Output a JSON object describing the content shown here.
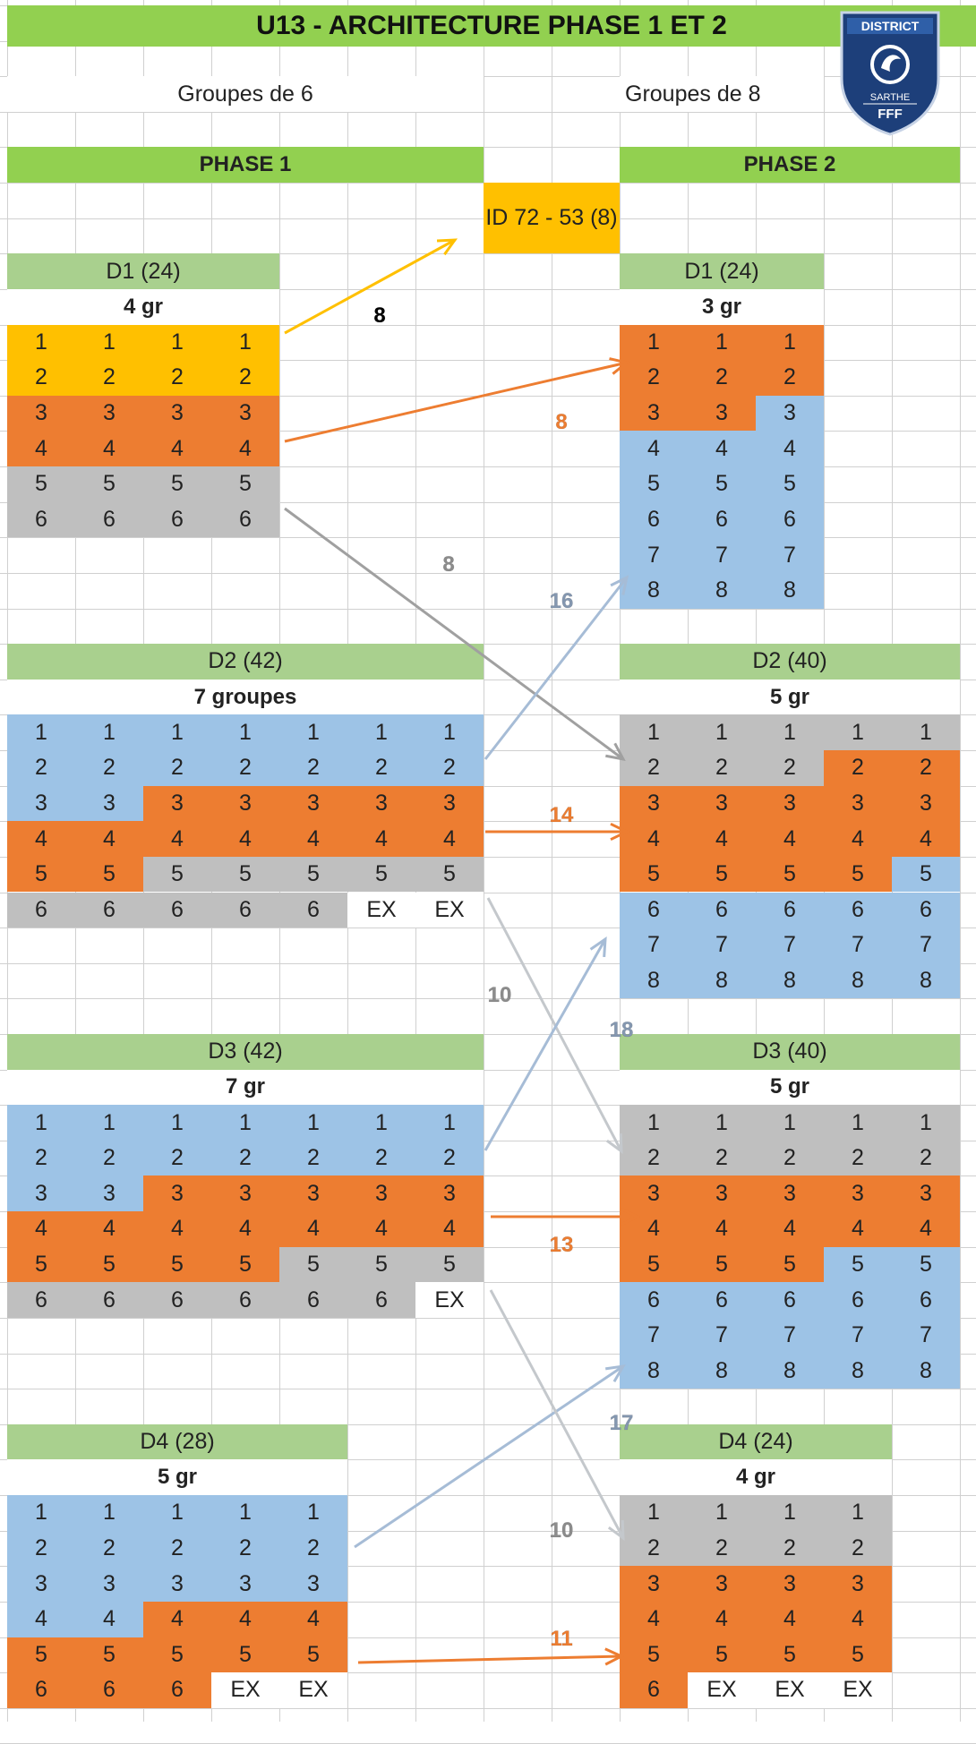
{
  "title": "U13 - ARCHITECTURE PHASE 1 ET 2",
  "logo": {
    "top_text": "DISTRICT",
    "middle_text": "SARTHE",
    "bottom_text": "FFF"
  },
  "colors": {
    "green": "#92d050",
    "light_green": "#a9d08e",
    "yellow": "#ffc000",
    "orange": "#ed7d31",
    "gray": "#bfbfbf",
    "blue": "#9dc3e6",
    "grid": "#d0d0d0",
    "logo_blue": "#1d3f7a"
  },
  "headers": {
    "groupes6": "Groupes de 6",
    "groupes8": "Groupes de 8",
    "phase1": "PHASE 1",
    "phase2": "PHASE 2",
    "id_box": "ID 72 - 53 (8)"
  },
  "phase1": [
    {
      "division": "D1  (24)",
      "groups": "4 gr",
      "rows": [
        {
          "v": [
            "1",
            "1",
            "1",
            "1"
          ],
          "c": "yellow"
        },
        {
          "v": [
            "2",
            "2",
            "2",
            "2"
          ],
          "c": "yellow"
        },
        {
          "v": [
            "3",
            "3",
            "3",
            "3"
          ],
          "c": "orange"
        },
        {
          "v": [
            "4",
            "4",
            "4",
            "4"
          ],
          "c": "orange"
        },
        {
          "v": [
            "5",
            "5",
            "5",
            "5"
          ],
          "c": "gray"
        },
        {
          "v": [
            "6",
            "6",
            "6",
            "6"
          ],
          "c": "gray"
        }
      ]
    },
    {
      "division": "D2  (42)",
      "groups": "7 groupes",
      "rows": [
        {
          "v": [
            "1",
            "1",
            "1",
            "1",
            "1",
            "1",
            "1"
          ],
          "c": "blue"
        },
        {
          "v": [
            "2",
            "2",
            "2",
            "2",
            "2",
            "2",
            "2"
          ],
          "c": "blue"
        },
        {
          "v": [
            "3",
            "3",
            "3",
            "3",
            "3",
            "3",
            "3"
          ],
          "c": [
            "blue",
            "blue",
            "orange",
            "orange",
            "orange",
            "orange",
            "orange"
          ]
        },
        {
          "v": [
            "4",
            "4",
            "4",
            "4",
            "4",
            "4",
            "4"
          ],
          "c": "orange"
        },
        {
          "v": [
            "5",
            "5",
            "5",
            "5",
            "5",
            "5",
            "5"
          ],
          "c": [
            "orange",
            "orange",
            "gray",
            "gray",
            "gray",
            "gray",
            "gray"
          ]
        },
        {
          "v": [
            "6",
            "6",
            "6",
            "6",
            "6",
            "EX",
            "EX"
          ],
          "c": [
            "gray",
            "gray",
            "gray",
            "gray",
            "gray",
            "white",
            "white"
          ]
        }
      ]
    },
    {
      "division": "D3  (42)",
      "groups": "7 gr",
      "rows": [
        {
          "v": [
            "1",
            "1",
            "1",
            "1",
            "1",
            "1",
            "1"
          ],
          "c": "blue"
        },
        {
          "v": [
            "2",
            "2",
            "2",
            "2",
            "2",
            "2",
            "2"
          ],
          "c": "blue"
        },
        {
          "v": [
            "3",
            "3",
            "3",
            "3",
            "3",
            "3",
            "3"
          ],
          "c": [
            "blue",
            "blue",
            "orange",
            "orange",
            "orange",
            "orange",
            "orange"
          ]
        },
        {
          "v": [
            "4",
            "4",
            "4",
            "4",
            "4",
            "4",
            "4"
          ],
          "c": "orange"
        },
        {
          "v": [
            "5",
            "5",
            "5",
            "5",
            "5",
            "5",
            "5"
          ],
          "c": [
            "orange",
            "orange",
            "orange",
            "orange",
            "gray",
            "gray",
            "gray"
          ]
        },
        {
          "v": [
            "6",
            "6",
            "6",
            "6",
            "6",
            "6",
            "EX"
          ],
          "c": [
            "gray",
            "gray",
            "gray",
            "gray",
            "gray",
            "gray",
            "white"
          ]
        }
      ]
    },
    {
      "division": "D4  (28)",
      "groups": "5 gr",
      "rows": [
        {
          "v": [
            "1",
            "1",
            "1",
            "1",
            "1"
          ],
          "c": "blue"
        },
        {
          "v": [
            "2",
            "2",
            "2",
            "2",
            "2"
          ],
          "c": "blue"
        },
        {
          "v": [
            "3",
            "3",
            "3",
            "3",
            "3"
          ],
          "c": "blue"
        },
        {
          "v": [
            "4",
            "4",
            "4",
            "4",
            "4"
          ],
          "c": [
            "blue",
            "blue",
            "orange",
            "orange",
            "orange"
          ]
        },
        {
          "v": [
            "5",
            "5",
            "5",
            "5",
            "5"
          ],
          "c": "orange"
        },
        {
          "v": [
            "6",
            "6",
            "6",
            "EX",
            "EX"
          ],
          "c": [
            "orange",
            "orange",
            "orange",
            "white",
            "white"
          ]
        }
      ]
    }
  ],
  "phase2": [
    {
      "division": "D1  (24)",
      "groups": "3 gr",
      "rows": [
        {
          "v": [
            "1",
            "1",
            "1"
          ],
          "c": "orange"
        },
        {
          "v": [
            "2",
            "2",
            "2"
          ],
          "c": "orange"
        },
        {
          "v": [
            "3",
            "3",
            "3"
          ],
          "c": [
            "orange",
            "orange",
            "blue"
          ]
        },
        {
          "v": [
            "4",
            "4",
            "4"
          ],
          "c": "blue"
        },
        {
          "v": [
            "5",
            "5",
            "5"
          ],
          "c": "blue"
        },
        {
          "v": [
            "6",
            "6",
            "6"
          ],
          "c": "blue"
        },
        {
          "v": [
            "7",
            "7",
            "7"
          ],
          "c": "blue"
        },
        {
          "v": [
            "8",
            "8",
            "8"
          ],
          "c": "blue"
        }
      ]
    },
    {
      "division": "D2  (40)",
      "groups": "5 gr",
      "rows": [
        {
          "v": [
            "1",
            "1",
            "1",
            "1",
            "1"
          ],
          "c": "gray"
        },
        {
          "v": [
            "2",
            "2",
            "2",
            "2",
            "2"
          ],
          "c": [
            "gray",
            "gray",
            "gray",
            "orange",
            "orange"
          ]
        },
        {
          "v": [
            "3",
            "3",
            "3",
            "3",
            "3"
          ],
          "c": "orange"
        },
        {
          "v": [
            "4",
            "4",
            "4",
            "4",
            "4"
          ],
          "c": "orange"
        },
        {
          "v": [
            "5",
            "5",
            "5",
            "5",
            "5"
          ],
          "c": [
            "orange",
            "orange",
            "orange",
            "orange",
            "blue"
          ]
        },
        {
          "v": [
            "6",
            "6",
            "6",
            "6",
            "6"
          ],
          "c": "blue"
        },
        {
          "v": [
            "7",
            "7",
            "7",
            "7",
            "7"
          ],
          "c": "blue"
        },
        {
          "v": [
            "8",
            "8",
            "8",
            "8",
            "8"
          ],
          "c": "blue"
        }
      ]
    },
    {
      "division": "D3  (40)",
      "groups": "5 gr",
      "rows": [
        {
          "v": [
            "1",
            "1",
            "1",
            "1",
            "1"
          ],
          "c": "gray"
        },
        {
          "v": [
            "2",
            "2",
            "2",
            "2",
            "2"
          ],
          "c": "gray"
        },
        {
          "v": [
            "3",
            "3",
            "3",
            "3",
            "3"
          ],
          "c": "orange"
        },
        {
          "v": [
            "4",
            "4",
            "4",
            "4",
            "4"
          ],
          "c": "orange"
        },
        {
          "v": [
            "5",
            "5",
            "5",
            "5",
            "5"
          ],
          "c": [
            "orange",
            "orange",
            "orange",
            "blue",
            "blue"
          ]
        },
        {
          "v": [
            "6",
            "6",
            "6",
            "6",
            "6"
          ],
          "c": "blue"
        },
        {
          "v": [
            "7",
            "7",
            "7",
            "7",
            "7"
          ],
          "c": "blue"
        },
        {
          "v": [
            "8",
            "8",
            "8",
            "8",
            "8"
          ],
          "c": "blue"
        }
      ]
    },
    {
      "division": "D4  (24)",
      "groups": "4 gr",
      "rows": [
        {
          "v": [
            "1",
            "1",
            "1",
            "1"
          ],
          "c": "gray"
        },
        {
          "v": [
            "2",
            "2",
            "2",
            "2"
          ],
          "c": "gray"
        },
        {
          "v": [
            "3",
            "3",
            "3",
            "3"
          ],
          "c": "orange"
        },
        {
          "v": [
            "4",
            "4",
            "4",
            "4"
          ],
          "c": "orange"
        },
        {
          "v": [
            "5",
            "5",
            "5",
            "5"
          ],
          "c": "orange"
        },
        {
          "v": [
            "6",
            "EX",
            "EX",
            "EX"
          ],
          "c": [
            "orange",
            "white",
            "white",
            "white"
          ]
        }
      ]
    }
  ],
  "flows": [
    {
      "label": "8",
      "color": "#000000"
    },
    {
      "label": "8",
      "color": "#ed7d31"
    },
    {
      "label": "8",
      "color": "#8c8c8c"
    },
    {
      "label": "16",
      "color": "#8497b0"
    },
    {
      "label": "14",
      "color": "#ed7d31"
    },
    {
      "label": "10",
      "color": "#8c8c8c"
    },
    {
      "label": "18",
      "color": "#8497b0"
    },
    {
      "label": "13",
      "color": "#ed7d31"
    },
    {
      "label": "17",
      "color": "#8497b0"
    },
    {
      "label": "10",
      "color": "#8c8c8c"
    },
    {
      "label": "11",
      "color": "#ed7d31"
    }
  ]
}
